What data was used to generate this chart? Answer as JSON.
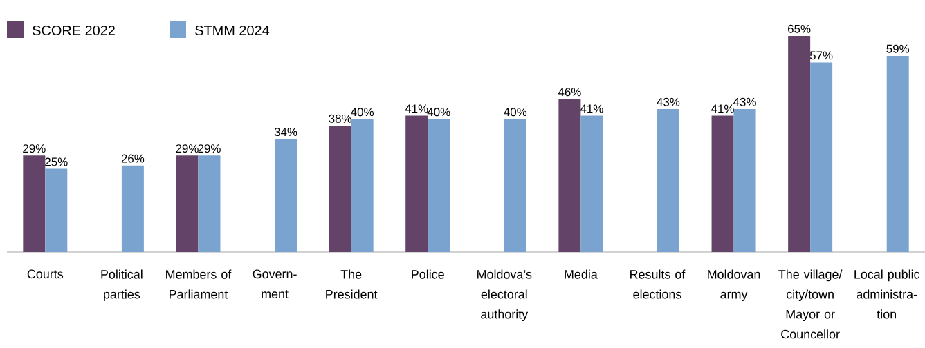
{
  "chart_data": {
    "type": "bar",
    "categories": [
      "Courts",
      "Political parties",
      "Members of Parliament",
      "Govern-ment",
      "The President",
      "Police",
      "Moldova’s electoral authority",
      "Media",
      "Results of elections",
      "Moldovan army",
      "The village/city/town Mayor or Councellor",
      "Local public administra-tion"
    ],
    "series": [
      {
        "name": "SCORE 2022",
        "color": "#634468",
        "values": [
          29,
          null,
          29,
          null,
          38,
          41,
          null,
          46,
          null,
          41,
          65,
          null
        ],
        "value_labels": [
          "29%",
          null,
          "29%",
          null,
          "38%",
          "41%",
          null,
          "46%",
          null,
          "41%",
          "65%",
          null
        ]
      },
      {
        "name": "STMM 2024",
        "color": "#7aa3cf",
        "values": [
          25,
          26,
          29,
          34,
          40,
          40,
          40,
          41,
          43,
          43,
          57,
          59
        ],
        "value_labels": [
          "25%",
          "26%",
          "29%",
          "34%",
          "40%",
          "40%",
          "40%",
          "41%",
          "43%",
          "43%",
          "57%",
          "59%"
        ]
      }
    ],
    "legend": "top left"
  }
}
